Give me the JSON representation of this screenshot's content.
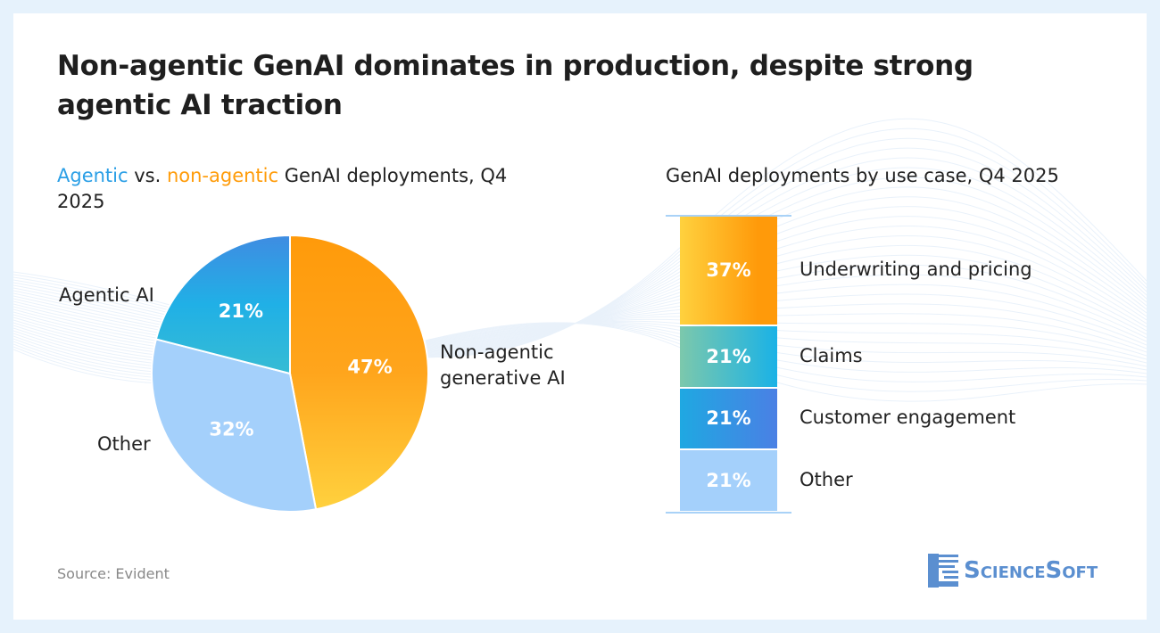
{
  "title": "Non-agentic GenAI dominates in production, despite strong agentic AI traction",
  "left": {
    "subtitle_agentic": "Agentic",
    "subtitle_vs": " vs. ",
    "subtitle_nonagentic": "non-agentic",
    "subtitle_rest": " GenAI deployments, Q4 2025"
  },
  "right": {
    "subtitle": "GenAI deployments by use case, Q4 2025"
  },
  "source": "Source: Evident",
  "logo": "ScienceSoft",
  "colors": {
    "agentic": "#2b9fe6",
    "non_agentic": "#ff9c0a",
    "other": "#a4d0fb"
  },
  "chart_data": [
    {
      "type": "pie",
      "slices": [
        {
          "label": "Non-agentic generative AI",
          "value": 47,
          "display": "47%"
        },
        {
          "label": "Other",
          "value": 32,
          "display": "32%"
        },
        {
          "label": "Agentic AI",
          "value": 21,
          "display": "21%"
        }
      ]
    },
    {
      "type": "bar",
      "stacked": true,
      "segments": [
        {
          "label": "Underwriting and pricing",
          "value": 37,
          "display": "37%"
        },
        {
          "label": "Claims",
          "value": 21,
          "display": "21%"
        },
        {
          "label": "Customer engagement",
          "value": 21,
          "display": "21%"
        },
        {
          "label": "Other",
          "value": 21,
          "display": "21%"
        }
      ]
    }
  ]
}
